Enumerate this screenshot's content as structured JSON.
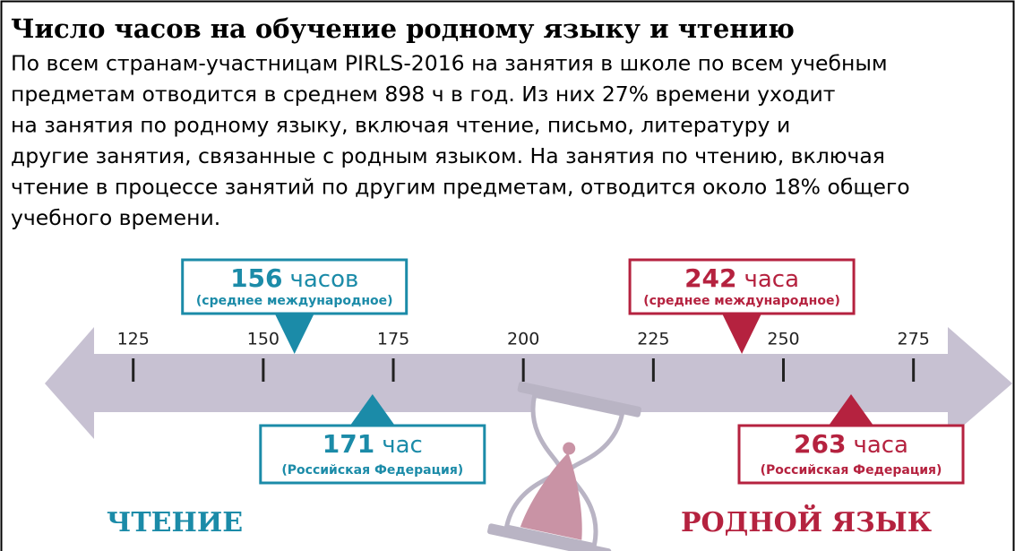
{
  "chart_data": {
    "type": "number-line",
    "title": "Число часов на обучение родному языку и чтению",
    "text": [
      "По всем странам-участницам PIRLS-2016 на занятия в школе по всем учебным",
      "предметам отводится в среднем 898 ч в год. Из них 27% времени уходит",
      "на занятия по родному языку, включая чтение, письмо, литературу и",
      "другие занятия, связанные с родным языком. На занятия по чтению, включая",
      "чтение в процессе занятий по другим предметам, отводится около 18% общего",
      "учебного времени."
    ],
    "xlim": [
      108,
      294
    ],
    "xticks": [
      125,
      150,
      175,
      200,
      225,
      250,
      275
    ],
    "series": [
      {
        "name": "ЧТЕНИЕ",
        "color": "#1b8ba8",
        "markers": [
          {
            "value": 156,
            "unit": "часов",
            "note": "(среднее международное)"
          },
          {
            "value": 171,
            "unit": "час",
            "note": "(Российская Федерация)"
          }
        ]
      },
      {
        "name": "РОДНОЙ ЯЗЫК",
        "color": "#b5223f",
        "markers": [
          {
            "value": 242,
            "unit": "часа",
            "note": "(среднее международное)"
          },
          {
            "value": 263,
            "unit": "часа",
            "note": "(Российская Федерация)"
          }
        ]
      }
    ]
  }
}
